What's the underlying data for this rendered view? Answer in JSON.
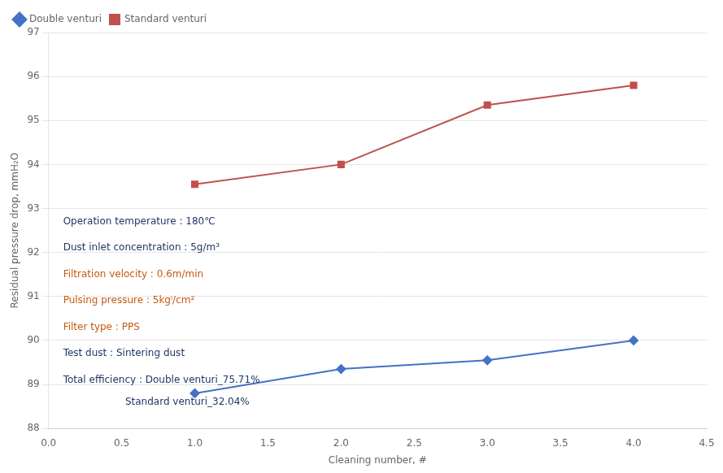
{
  "chart_data": {
    "type": "line",
    "x": [
      1,
      2,
      3,
      4
    ],
    "series": [
      {
        "name": "Double venturi",
        "color": "#4472c4",
        "marker": "diamond",
        "values": [
          88.8,
          89.35,
          89.55,
          90.0
        ]
      },
      {
        "name": "Standard venturi",
        "color": "#c0504d",
        "marker": "square",
        "values": [
          93.55,
          94.0,
          95.35,
          95.8
        ]
      }
    ],
    "xlabel": "Cleaning number, #",
    "ylabel": "Residual pressure drop, mmH₂O",
    "xlim": [
      0,
      4.5
    ],
    "xticks": [
      {
        "value": 0,
        "label": "0.0"
      },
      0.5,
      {
        "value": 1,
        "label": "1.0"
      },
      1.5,
      {
        "value": 2,
        "label": "2.0"
      },
      2.5,
      {
        "value": 3,
        "label": "3.0"
      },
      3.5,
      {
        "value": 4,
        "label": "4.0"
      },
      4.5
    ],
    "ylim": [
      88,
      97
    ],
    "yticks": [
      88,
      89,
      90,
      91,
      92,
      93,
      94,
      95,
      96,
      97
    ],
    "grid": "y",
    "legend": "upper left",
    "annotations": [
      {
        "text": "Operation temperature : 180℃",
        "x": 0.1,
        "y": 92.7,
        "color": "#1f3864"
      },
      {
        "text": "Dust inlet concentration : 5g/m³",
        "x": 0.1,
        "y": 92.1,
        "color": "#1f3864"
      },
      {
        "text": "Filtration velocity : 0.6m/min",
        "x": 0.1,
        "y": 91.5,
        "color": "#c55a11"
      },
      {
        "text": "Pulsing pressure : 5kgⁱ/cm²",
        "x": 0.1,
        "y": 90.9,
        "color": "#c55a11"
      },
      {
        "text": "Filter type : PPS",
        "x": 0.1,
        "y": 90.3,
        "color": "#c55a11"
      },
      {
        "text": "Test dust : Sintering dust",
        "x": 0.1,
        "y": 89.7,
        "color": "#1f3864"
      },
      {
        "text": "Total efficiency : Double venturi_75.71%",
        "x": 0.1,
        "y": 89.1,
        "color": "#1f3864"
      },
      {
        "text": "                    Standard venturi_32.04%",
        "x": 0.1,
        "y": 88.6,
        "color": "#1f3864"
      }
    ]
  }
}
